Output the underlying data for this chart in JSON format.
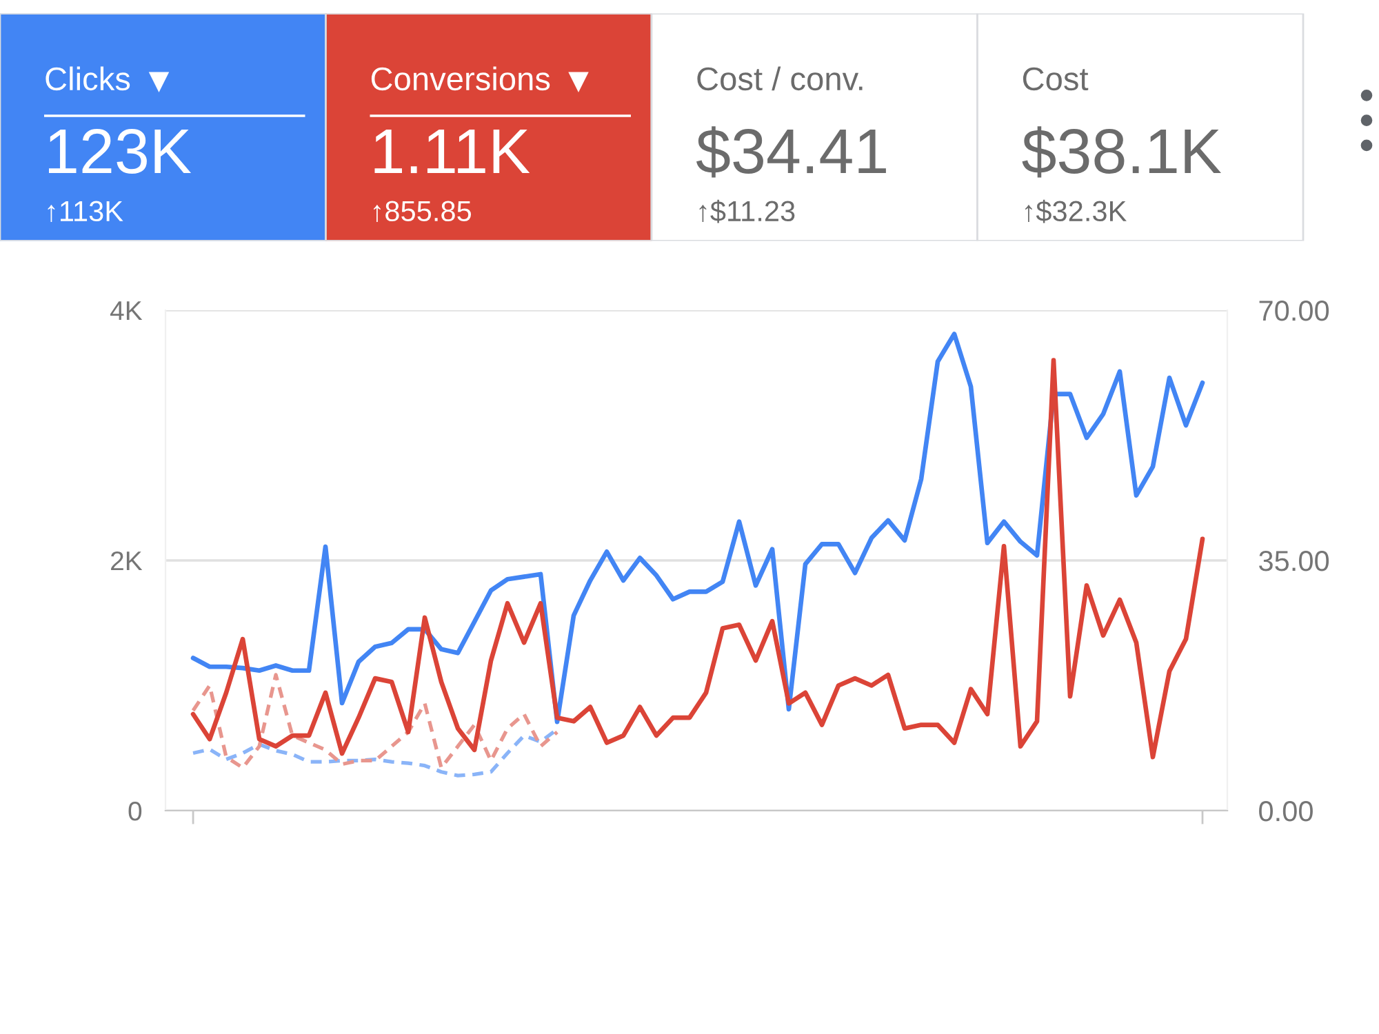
{
  "chart_data": [
    {
      "type": "other",
      "annotations": [
        "Clicks",
        "123K",
        "↑113K",
        "Conversions",
        "1.11K",
        "↑855.85",
        "Cost / conv.",
        "$34.41",
        "↑$11.23",
        "Cost",
        "$38.1K",
        "↑$32.3K"
      ],
      "colors": [
        "#4285f4",
        "#db4437",
        "#ffffff",
        "#ffffff"
      ]
    },
    {
      "type": "line",
      "categories": [
        null,
        null,
        null,
        null,
        null,
        null,
        null,
        null,
        null,
        null,
        null,
        null,
        null,
        null,
        null,
        null,
        null,
        null,
        null,
        null,
        null,
        null,
        null,
        null,
        null,
        null,
        null,
        null,
        null,
        null,
        null,
        null,
        null,
        null,
        null,
        null,
        null,
        null,
        null,
        null,
        null,
        null,
        null,
        null,
        null,
        null,
        null,
        null,
        null,
        null,
        null,
        null,
        null,
        null,
        null,
        null,
        null,
        null,
        null,
        null,
        null,
        null
      ],
      "series": [
        {
          "color": "#8ab4f8",
          "axis": "y",
          "line_style": "dashed",
          "values": [
            460,
            490,
            410,
            460,
            530,
            480,
            450,
            390,
            390,
            400,
            400,
            410,
            390,
            380,
            360,
            310,
            280,
            290,
            310,
            460,
            600,
            550,
            650,
            null,
            null,
            null,
            null,
            null,
            null,
            null,
            null,
            null,
            null,
            null,
            null,
            null,
            null,
            null,
            null,
            null,
            null,
            null,
            null,
            null,
            null,
            null,
            null,
            null,
            null,
            null,
            null,
            null,
            null,
            null,
            null,
            null,
            null,
            null,
            null,
            null,
            null,
            null
          ]
        },
        {
          "color": "#e8968e",
          "axis": "y2",
          "line_style": "dashed",
          "values": [
            14,
            17.5,
            7.5,
            6,
            9,
            19,
            10.5,
            9.5,
            8.5,
            6.5,
            7,
            7,
            9,
            11,
            15,
            6,
            9,
            12,
            7,
            11.5,
            13.5,
            9,
            11,
            null,
            null,
            null,
            null,
            null,
            null,
            null,
            null,
            null,
            null,
            null,
            null,
            null,
            null,
            null,
            null,
            null,
            null,
            null,
            null,
            null,
            null,
            null,
            null,
            null,
            null,
            null,
            null,
            null,
            null,
            null,
            null,
            null,
            null,
            null,
            null,
            null,
            null,
            null
          ]
        },
        {
          "color": "#4285f4",
          "axis": "y",
          "values": [
            1220,
            1150,
            1150,
            1140,
            1120,
            1160,
            1120,
            1120,
            2110,
            860,
            1190,
            1310,
            1340,
            1450,
            1450,
            1290,
            1260,
            1510,
            1760,
            1850,
            1870,
            1890,
            710,
            1560,
            1840,
            2070,
            1840,
            2020,
            1880,
            1690,
            1750,
            1750,
            1830,
            2310,
            1800,
            2090,
            810,
            1970,
            2130,
            2130,
            1900,
            2180,
            2320,
            2160,
            2650,
            3590,
            3810,
            3390,
            2140,
            2310,
            2150,
            2040,
            3330,
            3330,
            2980,
            3170,
            3510,
            2520,
            2750,
            3460,
            3080,
            3420
          ]
        },
        {
          "color": "#db4437",
          "axis": "y2",
          "values": [
            13.5,
            10,
            16.5,
            24,
            10,
            9,
            10.5,
            10.5,
            16.5,
            8,
            13,
            18.5,
            18,
            11,
            27,
            18,
            11.5,
            8.5,
            21,
            29,
            23.5,
            29,
            13,
            12.5,
            14.5,
            9.5,
            10.5,
            14.5,
            10.5,
            13,
            13,
            16.5,
            25.5,
            26,
            21,
            26.5,
            15,
            16.5,
            12,
            17.5,
            18.5,
            17.5,
            19,
            11.5,
            12,
            12,
            9.5,
            17,
            13.5,
            37,
            9,
            12.5,
            63,
            16,
            31.5,
            24.5,
            29.5,
            23.5,
            7.5,
            19.5,
            24,
            38
          ]
        }
      ],
      "ylim": [
        0,
        4000
      ],
      "yticks": [
        {
          "value": 0,
          "label": "0"
        },
        {
          "value": 2000,
          "label": "2K"
        },
        {
          "value": 4000,
          "label": "4K"
        }
      ],
      "y2lim": [
        0,
        70
      ],
      "y2ticks": [
        {
          "value": 0,
          "label": "0.00"
        },
        {
          "value": 35,
          "label": "35.00"
        },
        {
          "value": 70,
          "label": "70.00"
        }
      ],
      "grid": "y",
      "line_style": "solid"
    }
  ]
}
